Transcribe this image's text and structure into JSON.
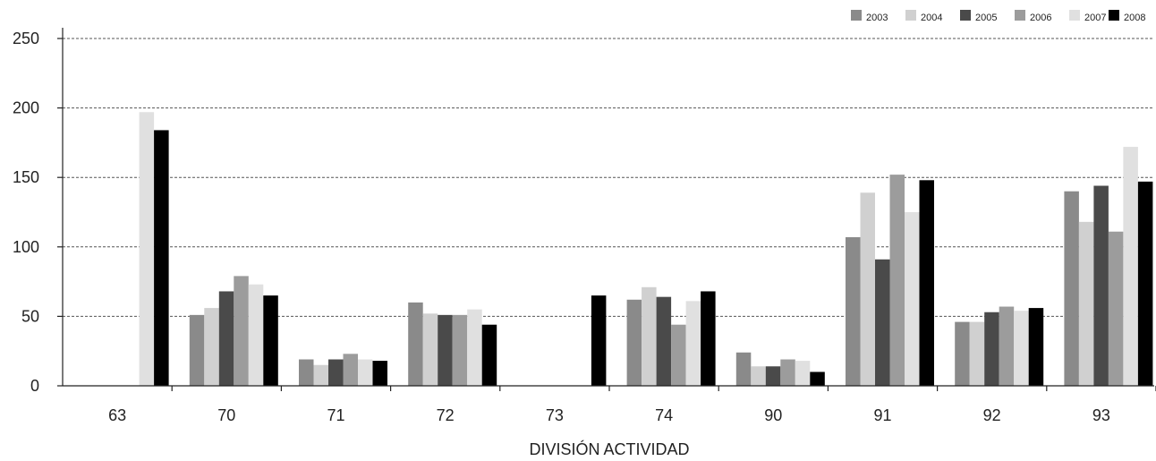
{
  "chart_data": {
    "type": "bar",
    "title": "",
    "xlabel": "DIVISIÓN ACTIVIDAD",
    "ylabel": "",
    "ylim": [
      0,
      250
    ],
    "yticks": [
      0,
      50,
      100,
      150,
      200,
      250
    ],
    "grid": "horizontal-dashed",
    "legend_position": "top-right",
    "categories": [
      "63",
      "70",
      "71",
      "72",
      "73",
      "74",
      "90",
      "91",
      "92",
      "93"
    ],
    "series": [
      {
        "name": "2003",
        "color": "#8a8a8a",
        "values": [
          0,
          51,
          19,
          60,
          0,
          62,
          24,
          107,
          46,
          140
        ]
      },
      {
        "name": "2004",
        "color": "#d0d0d0",
        "values": [
          0,
          56,
          15,
          52,
          0,
          71,
          14,
          139,
          46,
          118
        ]
      },
      {
        "name": "2005",
        "color": "#4a4a4a",
        "values": [
          0,
          68,
          19,
          51,
          0,
          64,
          14,
          91,
          53,
          144
        ]
      },
      {
        "name": "2006",
        "color": "#9c9c9c",
        "values": [
          0,
          79,
          23,
          51,
          0,
          44,
          19,
          152,
          57,
          111
        ]
      },
      {
        "name": "2007",
        "color": "#e0e0e0",
        "values": [
          197,
          73,
          19,
          55,
          0,
          61,
          18,
          125,
          54,
          172
        ]
      },
      {
        "name": "2008",
        "color": "#000000",
        "values": [
          184,
          65,
          18,
          44,
          65,
          68,
          10,
          148,
          56,
          147
        ]
      }
    ]
  }
}
